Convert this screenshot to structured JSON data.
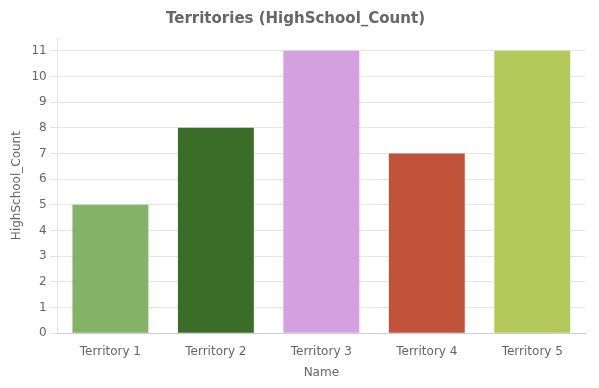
{
  "chart_data": {
    "type": "bar",
    "title": "Territories (HighSchool_Count)",
    "categories": [
      "Territory 1",
      "Territory 2",
      "Territory 3",
      "Territory 4",
      "Territory 5"
    ],
    "values": [
      5,
      8,
      11,
      7,
      11
    ],
    "colors": [
      "#82b366",
      "#3a6e28",
      "#d4a0e0",
      "#c0533a",
      "#b5c95a"
    ],
    "xlabel": "Name",
    "ylabel": "HighSchool_Count",
    "ylim": [
      0,
      11.5
    ],
    "yticks": [
      0,
      1,
      2,
      3,
      4,
      5,
      6,
      7,
      8,
      9,
      10,
      11
    ],
    "grid": true
  }
}
